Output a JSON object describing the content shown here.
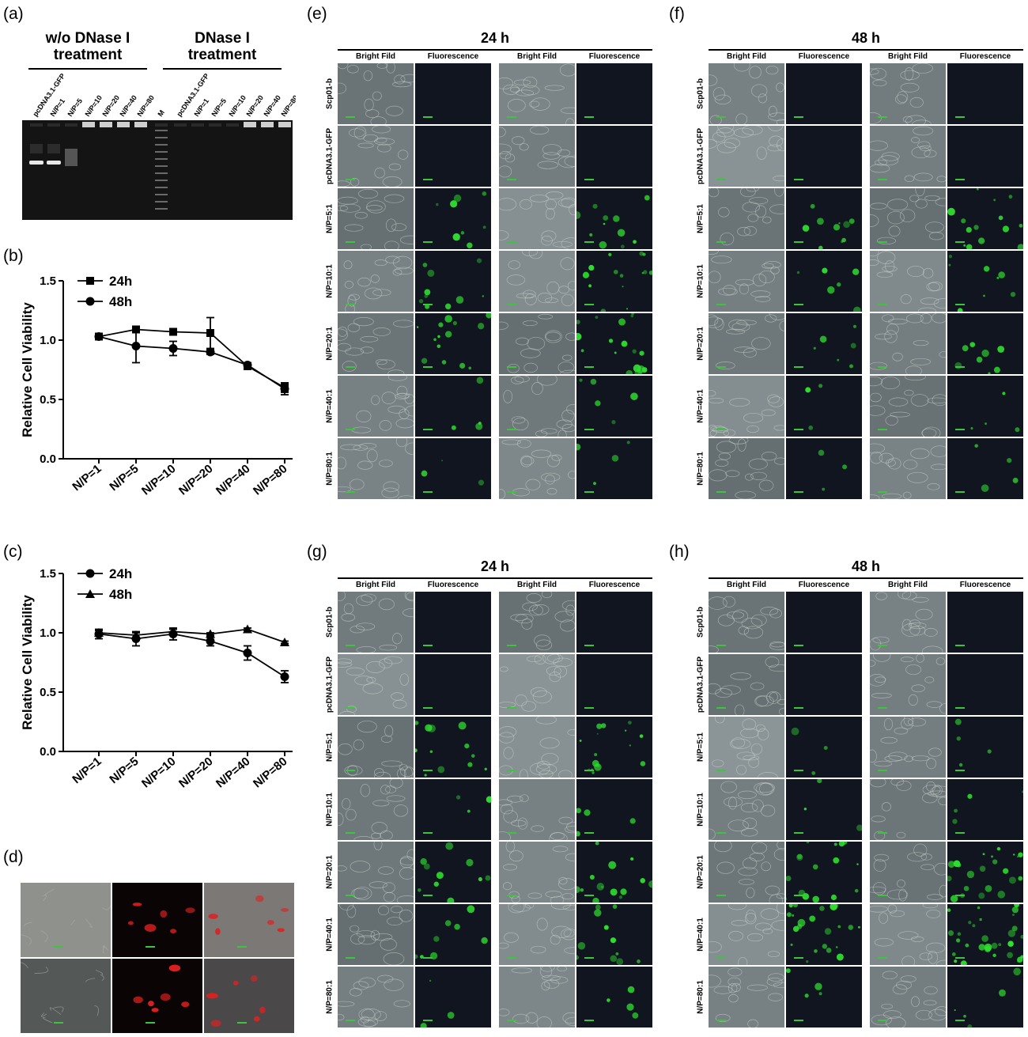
{
  "panels": {
    "a": "(a)",
    "b": "(b)",
    "c": "(c)",
    "d": "(d)",
    "e": "(e)",
    "f": "(f)",
    "g": "(g)",
    "h": "(h)"
  },
  "gel": {
    "group1_title_line1": "w/o DNase I",
    "group1_title_line2": "treatment",
    "group2_title_line1": "DNase I",
    "group2_title_line2": "treatment",
    "lanes_left": [
      "pcDNA3.1-GFP",
      "N/P=1",
      "N/P=5",
      "N/P=10",
      "N/P=20",
      "N/P=40",
      "N/P=80"
    ],
    "marker": "M",
    "lanes_right": [
      "pcDNA3.1-GFP",
      "N/P=1",
      "N/P=5",
      "N/P=10",
      "N/P=20",
      "N/P=40",
      "N/P=80"
    ]
  },
  "chart_data": [
    {
      "type": "line",
      "panel": "(b)",
      "categories": [
        "N/P=1",
        "N/P=5",
        "N/P=10",
        "N/P=20",
        "N/P=40",
        "N/P=80"
      ],
      "ylabel": "Relative Cell Viability",
      "ylim": [
        0,
        1.5
      ],
      "yticks": [
        "0.0",
        "0.5",
        "1.0",
        "1.5"
      ],
      "legend_position": "top-left",
      "series": [
        {
          "name": "24h",
          "marker": "square",
          "values": [
            1.03,
            1.09,
            1.07,
            1.06,
            0.78,
            0.6
          ],
          "errors": [
            0.02,
            0.02,
            0.02,
            0.13,
            0.02,
            0.04
          ]
        },
        {
          "name": "48h",
          "marker": "circle",
          "values": [
            1.03,
            0.95,
            0.93,
            0.9,
            0.79,
            0.59
          ],
          "errors": [
            0.02,
            0.14,
            0.06,
            0.02,
            0.02,
            0.05
          ]
        }
      ]
    },
    {
      "type": "line",
      "panel": "(c)",
      "categories": [
        "N/P=1",
        "N/P=5",
        "N/P=10",
        "N/P=20",
        "N/P=40",
        "N/P=80"
      ],
      "ylabel": "Relative Cell Viability",
      "ylim": [
        0,
        1.5
      ],
      "yticks": [
        "0.0",
        "0.5",
        "1.0",
        "1.5"
      ],
      "legend_position": "top-left",
      "series": [
        {
          "name": "24h",
          "marker": "circle",
          "values": [
            0.99,
            0.95,
            0.99,
            0.93,
            0.83,
            0.63
          ],
          "errors": [
            0.04,
            0.06,
            0.05,
            0.04,
            0.06,
            0.05
          ]
        },
        {
          "name": "48h",
          "marker": "triangle",
          "values": [
            1.0,
            0.98,
            1.01,
            0.99,
            1.03,
            0.92
          ],
          "errors": [
            0.02,
            0.02,
            0.02,
            0.01,
            0.01,
            0.01
          ]
        }
      ]
    }
  ],
  "micro": {
    "title_24": "24 h",
    "title_48": "48 h",
    "col_bright": "Bright Fild",
    "col_fluor": "Fluorescence",
    "rows": [
      "Scp01-b",
      "pcDNA3.1-GFP",
      "N/P=5:1",
      "N/P=10:1",
      "N/P=20:1",
      "N/P=40:1",
      "N/P=80:1"
    ]
  },
  "colors": {
    "bright_field": "#8a8f8d",
    "fluorescence_bg": "#101520",
    "gfp": "#2ee02e",
    "rfp": "#e02020",
    "gel_bg": "#141414"
  }
}
